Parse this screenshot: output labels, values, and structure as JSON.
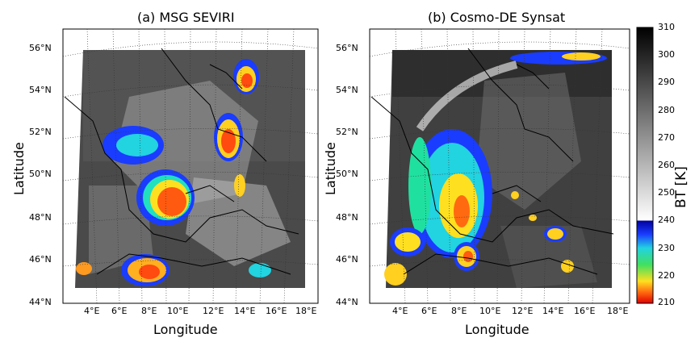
{
  "panels": [
    {
      "title": "(a) MSG SEVIRI",
      "xlabel": "Longitude",
      "ylabel": "Latitude",
      "lat_ticks": [
        "56°N",
        "54°N",
        "52°N",
        "50°N",
        "48°N",
        "46°N",
        "44°N"
      ],
      "lon_ticks": [
        "4°E",
        "6°E",
        "8°E",
        "10°E",
        "12°E",
        "14°E",
        "16°E",
        "18°E"
      ]
    },
    {
      "title": "(b) Cosmo-DE Synsat",
      "xlabel": "Longitude",
      "ylabel": "Latitude",
      "lat_ticks": [
        "56°N",
        "54°N",
        "52°N",
        "50°N",
        "48°N",
        "46°N",
        "44°N"
      ],
      "lon_ticks": [
        "4°E",
        "6°E",
        "8°E",
        "10°E",
        "12°E",
        "14°E",
        "16°E",
        "18°E"
      ]
    }
  ],
  "colorbar": {
    "label": "BT [K]",
    "ticks": [
      "310",
      "300",
      "290",
      "280",
      "270",
      "260",
      "250",
      "240",
      "230",
      "220",
      "210"
    ]
  }
}
